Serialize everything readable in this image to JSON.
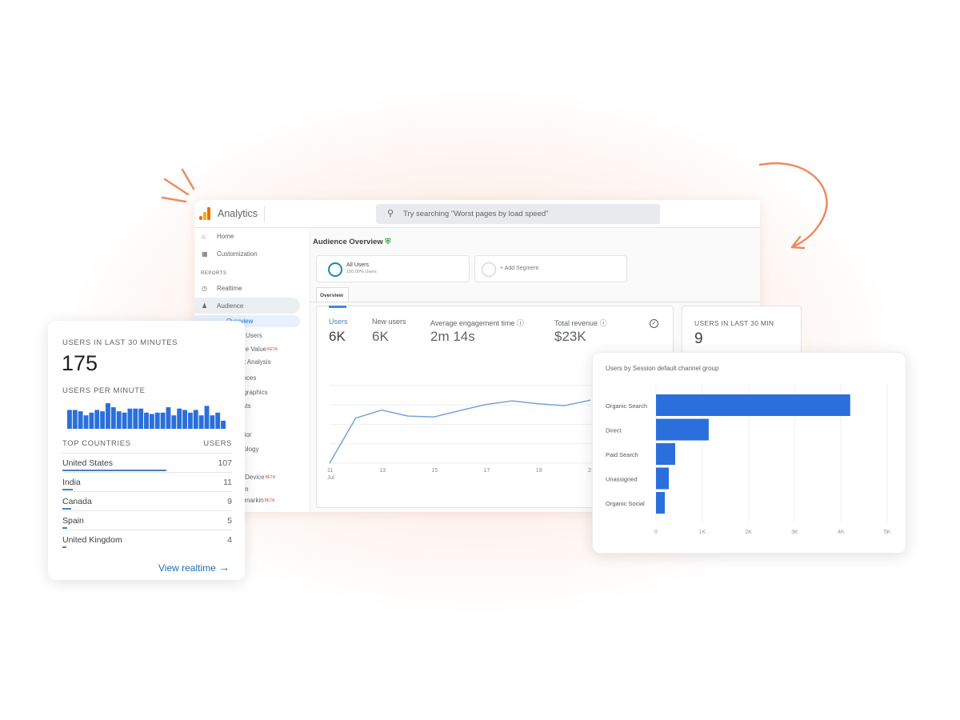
{
  "app": {
    "title": "Analytics",
    "search_placeholder": "Try searching \"Worst pages by load speed\""
  },
  "sidebar": {
    "items": [
      {
        "label": "Home",
        "icon": "home-icon"
      },
      {
        "label": "Customization",
        "icon": "dashboard-icon"
      }
    ],
    "section": "REPORTS",
    "reports": [
      {
        "label": "Realtime",
        "icon": "clock-icon"
      },
      {
        "label": "Audience",
        "icon": "person-icon"
      }
    ],
    "sub_items": [
      {
        "label": "Overview"
      },
      {
        "label": "Active Users"
      },
      {
        "label": "Lifetime Value",
        "badge": "BETA"
      },
      {
        "label": "Cohort Analysis"
      },
      {
        "label": "Audiences"
      },
      {
        "label": "Demographics"
      },
      {
        "label": "Interests"
      },
      {
        "label": "Geo"
      },
      {
        "label": "Behavior"
      },
      {
        "label": "Technology"
      },
      {
        "label": "Mobile"
      },
      {
        "label": "Cross Device",
        "badge": "BETA"
      },
      {
        "label": "Custom"
      },
      {
        "label": "Benchmarkin",
        "badge": "BETA"
      }
    ]
  },
  "main": {
    "title": "Audience Overview",
    "segments": [
      {
        "name": "All Users",
        "sub": "100.00% Users"
      },
      {
        "name": "+ Add Segment"
      }
    ],
    "tab": "Overview",
    "metrics": [
      {
        "label": "Users",
        "value": "6K"
      },
      {
        "label": "New users",
        "value": "6K"
      },
      {
        "label": "Average engagement time",
        "value": "2m 14s"
      },
      {
        "label": "Total revenue",
        "value": "$23K"
      }
    ],
    "realtime_mini": {
      "label": "USERS IN LAST 30 MIN",
      "value": "9"
    }
  },
  "realtime_card": {
    "title": "USERS IN LAST 30 MINUTES",
    "value": "175",
    "per_minute_label": "USERS PER MINUTE",
    "countries_header": "TOP COUNTRIES",
    "users_header": "USERS",
    "countries": [
      {
        "name": "United States",
        "users": 107
      },
      {
        "name": "India",
        "users": 11
      },
      {
        "name": "Canada",
        "users": 9
      },
      {
        "name": "Spain",
        "users": 5
      },
      {
        "name": "United Kingdom",
        "users": 4
      }
    ],
    "link": "View realtime"
  },
  "colors": {
    "accent": "#1a73e8",
    "bar": "#2a6fdb",
    "line": "#6e9fd6",
    "decor": "#ee8a5e"
  },
  "chart_data": [
    {
      "type": "line",
      "x_tick_labels": [
        "11",
        "13",
        "15",
        "17",
        "19",
        "21"
      ],
      "x_sub_label": "Jul",
      "x": [
        11,
        12,
        13,
        14,
        15,
        16,
        17,
        18,
        19,
        20,
        21
      ],
      "values": [
        0,
        464,
        547,
        485,
        476,
        542,
        604,
        641,
        612,
        592,
        649
      ],
      "grid": true
    },
    {
      "type": "bar",
      "orientation": "vertical",
      "values": [
        7,
        7,
        6.5,
        5,
        6,
        7,
        6.5,
        9.5,
        8,
        6.5,
        6,
        7.5,
        7.5,
        7.5,
        6,
        5.5,
        6,
        6,
        8,
        5,
        7.5,
        7,
        6,
        7,
        5,
        8.5,
        5,
        6,
        3
      ]
    },
    {
      "type": "bar",
      "orientation": "horizontal",
      "title": "Users by Session default channel group",
      "categories": [
        "Organic Search",
        "Direct",
        "Paid Search",
        "Unassigned",
        "Organic Social"
      ],
      "values": [
        4200,
        1140,
        415,
        277,
        190
      ],
      "xlim": [
        0,
        5000
      ],
      "x_tick_labels": [
        "0",
        "1K",
        "2K",
        "3K",
        "4K",
        "5K"
      ],
      "grid": true
    }
  ]
}
